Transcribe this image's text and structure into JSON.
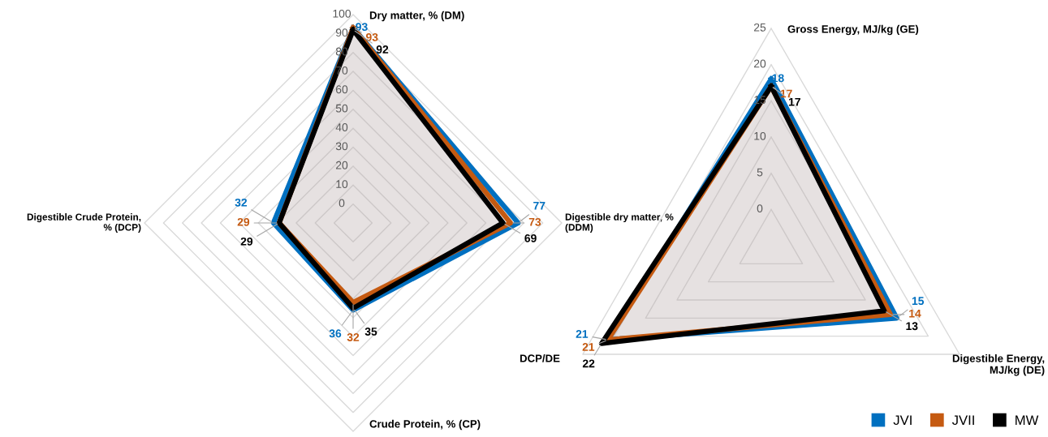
{
  "chart_data": [
    {
      "type": "radar",
      "categories": [
        "Dry matter, % (DM)",
        "Digestible dry matter, %\n(DDM)",
        "Crude Protein, % (CP)",
        "Digestible Crude Protein,\n% (DCP)"
      ],
      "ylim": [
        -10,
        100
      ],
      "yticks": [
        0,
        10,
        20,
        30,
        40,
        50,
        60,
        70,
        80,
        90,
        100
      ],
      "grid": true,
      "data_labels": true,
      "series": [
        {
          "color": "#0070c0",
          "values": [
            93,
            77,
            36,
            32
          ]
        },
        {
          "color": "#c55a11",
          "values": [
            93,
            73,
            32,
            29
          ]
        },
        {
          "color": "#000000",
          "type": "area",
          "values": [
            92,
            69,
            35,
            29
          ]
        }
      ]
    },
    {
      "type": "radar",
      "categories": [
        "Gross Energy, MJ/kg (GE)",
        "Digestible Energy,\nMJ/kg (DE)",
        "DCP/DE"
      ],
      "ylim": [
        -5,
        25
      ],
      "yticks": [
        0,
        5,
        10,
        15,
        20,
        25
      ],
      "grid": true,
      "data_labels": true,
      "legend": "bottom right",
      "series": [
        {
          "name": "JVI",
          "color": "#0070c0",
          "values": [
            18,
            15,
            21
          ]
        },
        {
          "name": "JVII",
          "color": "#c55a11",
          "values": [
            17,
            14,
            21
          ]
        },
        {
          "name": "MW",
          "color": "#000000",
          "type": "area",
          "values": [
            17,
            13,
            22
          ]
        }
      ]
    }
  ]
}
